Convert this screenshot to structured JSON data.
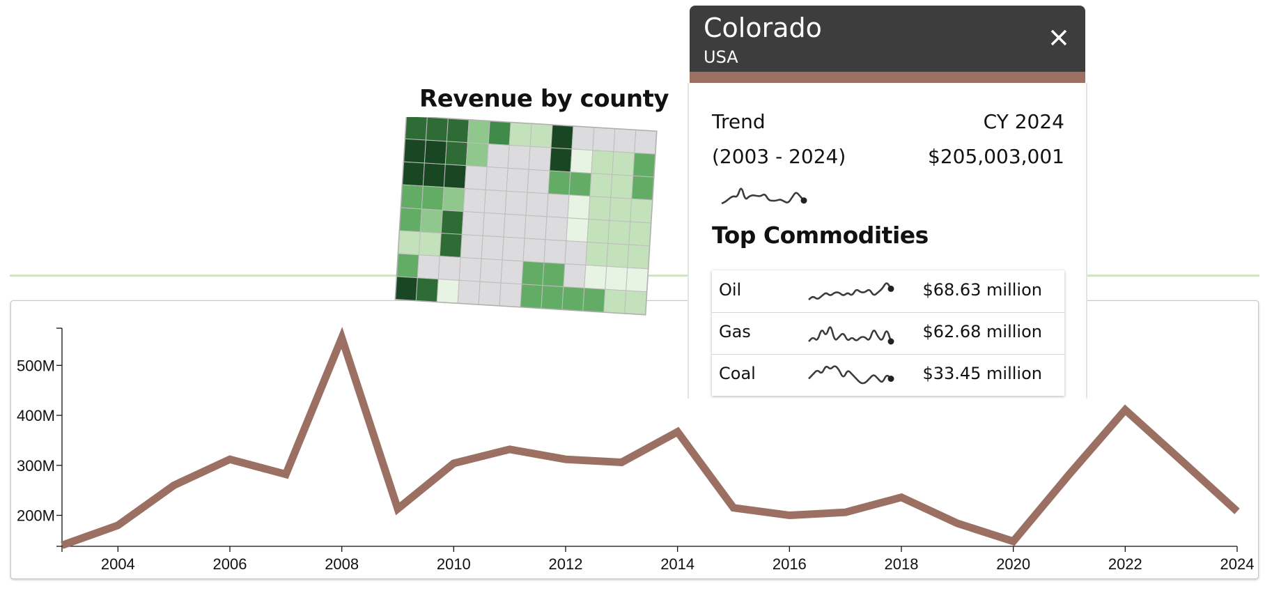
{
  "panel": {
    "title": "Colorado",
    "subtitle": "USA",
    "header_color": "#3d3d3e",
    "accent_color": "#9b7062",
    "trend_label": "Trend",
    "trend_range": "(2003 - 2024)",
    "period_label": "CY 2024",
    "period_value": "$205,003,001",
    "close_icon": "close-icon",
    "top_commodities_title": "Top Commodities",
    "commodities": [
      {
        "name": "Oil",
        "value": "$68.63 million",
        "spark": [
          3,
          4,
          3,
          4,
          5,
          4,
          5,
          5,
          4,
          5,
          4,
          6,
          5,
          5,
          6,
          4,
          5,
          6,
          8,
          6
        ]
      },
      {
        "name": "Gas",
        "value": "$62.68 million",
        "spark": [
          5,
          6,
          5,
          8,
          6,
          9,
          5,
          6,
          7,
          5,
          6,
          5,
          6,
          6,
          5,
          8,
          6,
          5,
          8,
          5
        ]
      },
      {
        "name": "Coal",
        "value": "$33.45 million",
        "spark": [
          6,
          7,
          8,
          7,
          9,
          8,
          9,
          8,
          6,
          8,
          7,
          6,
          5,
          5,
          6,
          7,
          6,
          5,
          7,
          6
        ]
      }
    ]
  },
  "map": {
    "title": "Revenue by county",
    "palette": [
      "#1a4723",
      "#2e6b35",
      "#3f8a48",
      "#62ac65",
      "#8fc78c",
      "#c3e2bb",
      "#e8f4e3",
      "#dcdcde"
    ]
  },
  "chart_data": {
    "type": "line",
    "title": "",
    "xlabel": "",
    "ylabel": "",
    "x": [
      2003,
      2004,
      2005,
      2006,
      2007,
      2008,
      2009,
      2010,
      2011,
      2012,
      2013,
      2014,
      2015,
      2016,
      2017,
      2018,
      2019,
      2020,
      2021,
      2022,
      2023,
      2024
    ],
    "series": [
      {
        "values": [
          140,
          180,
          260,
          312,
          282,
          555,
          213,
          304,
          332,
          312,
          306,
          367,
          215,
          200,
          206,
          236,
          184,
          148,
          282,
          411,
          310,
          208
        ]
      }
    ],
    "x_ticks": [
      "2004",
      "2006",
      "2008",
      "2010",
      "2012",
      "2014",
      "2016",
      "2018",
      "2020",
      "2022",
      "2024"
    ],
    "y_ticks": [
      "200M",
      "300M",
      "400M",
      "500M"
    ],
    "xlim": [
      2003,
      2024
    ],
    "ylim": [
      138,
      566
    ],
    "unit": "M",
    "line_color": "#9b7062",
    "grid": false
  }
}
